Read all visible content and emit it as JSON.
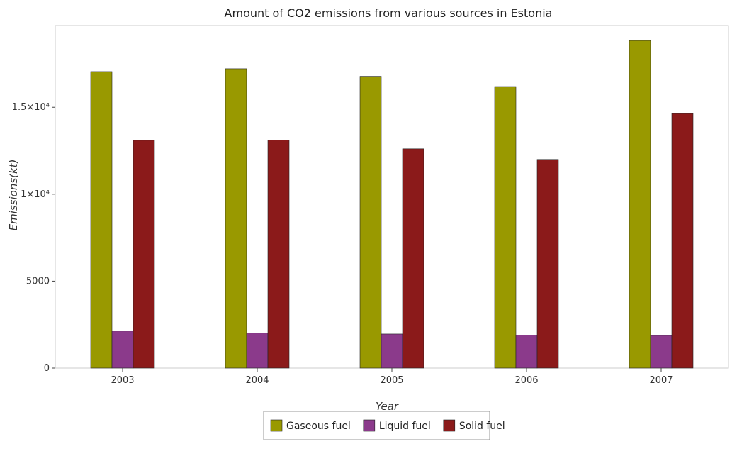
{
  "chart_data": {
    "type": "bar",
    "title": "Amount of CO2 emissions from various sources in Estonia",
    "xlabel": "Year",
    "ylabel": "Emissions(kt)",
    "categories": [
      "2003",
      "2004",
      "2005",
      "2006",
      "2007"
    ],
    "ylim": [
      0,
      19700
    ],
    "yticks": [
      0,
      5000,
      10000,
      15000
    ],
    "ytick_labels": [
      "0",
      "5000",
      "1×10⁴",
      "1.5×10⁴"
    ],
    "grid": false,
    "legend_position": "bottom-center",
    "series": [
      {
        "name": "Gaseous fuel",
        "color": "#999900",
        "values": [
          17050,
          17215,
          16780,
          16190,
          18840
        ]
      },
      {
        "name": "Liquid fuel",
        "color": "#8b3a8b",
        "values": [
          2130,
          2010,
          1960,
          1900,
          1880
        ]
      },
      {
        "name": "Solid fuel",
        "color": "#8b1a1a",
        "values": [
          13100,
          13110,
          12610,
          12000,
          14640
        ]
      }
    ]
  }
}
